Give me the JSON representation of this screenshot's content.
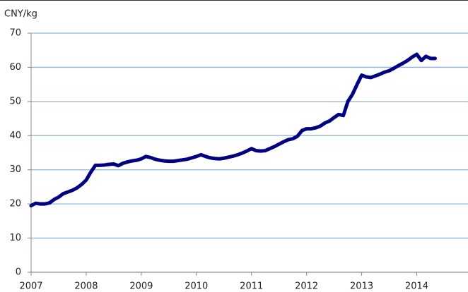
{
  "chart_data": {
    "type": "line",
    "y_label": "CNY/kg",
    "x": [
      2007,
      2007.083,
      2007.167,
      2007.25,
      2007.333,
      2007.417,
      2007.5,
      2007.583,
      2007.667,
      2007.75,
      2007.833,
      2007.917,
      2008,
      2008.083,
      2008.167,
      2008.25,
      2008.333,
      2008.417,
      2008.5,
      2008.583,
      2008.667,
      2008.75,
      2008.833,
      2008.917,
      2009,
      2009.083,
      2009.167,
      2009.25,
      2009.333,
      2009.417,
      2009.5,
      2009.583,
      2009.667,
      2009.75,
      2009.833,
      2009.917,
      2010,
      2010.083,
      2010.167,
      2010.25,
      2010.333,
      2010.417,
      2010.5,
      2010.583,
      2010.667,
      2010.75,
      2010.833,
      2010.917,
      2011,
      2011.083,
      2011.167,
      2011.25,
      2011.333,
      2011.417,
      2011.5,
      2011.583,
      2011.667,
      2011.75,
      2011.833,
      2011.917,
      2012,
      2012.083,
      2012.167,
      2012.25,
      2012.333,
      2012.417,
      2012.5,
      2012.583,
      2012.667,
      2012.75,
      2012.833,
      2012.917,
      2013,
      2013.083,
      2013.167,
      2013.25,
      2013.333,
      2013.417,
      2013.5,
      2013.583,
      2013.667,
      2013.75,
      2013.833,
      2013.917,
      2014,
      2014.083,
      2014.167,
      2014.25,
      2014.333
    ],
    "series": [
      {
        "color": "#000080",
        "values": [
          19.5,
          20.2,
          20.0,
          20.0,
          20.3,
          21.3,
          22.0,
          23.0,
          23.5,
          24.0,
          24.7,
          25.7,
          27.0,
          29.3,
          31.3,
          31.3,
          31.4,
          31.6,
          31.7,
          31.2,
          31.9,
          32.3,
          32.6,
          32.8,
          33.2,
          33.9,
          33.6,
          33.1,
          32.8,
          32.6,
          32.5,
          32.5,
          32.7,
          32.9,
          33.1,
          33.5,
          33.9,
          34.4,
          33.9,
          33.5,
          33.3,
          33.2,
          33.4,
          33.7,
          34.0,
          34.4,
          34.9,
          35.5,
          36.2,
          35.6,
          35.5,
          35.6,
          36.2,
          36.8,
          37.5,
          38.2,
          38.8,
          39.1,
          39.8,
          41.5,
          42.0,
          42.0,
          42.3,
          42.8,
          43.7,
          44.3,
          45.3,
          46.2,
          45.9,
          50.0,
          52.1,
          55.0,
          57.7,
          57.2,
          57.0,
          57.5,
          58.0,
          58.6,
          59.0,
          59.7,
          60.5,
          61.2,
          62.0,
          63.0,
          63.8,
          62.0,
          63.2,
          62.6,
          62.6
        ]
      }
    ],
    "xlim": [
      2007,
      2014.93
    ],
    "xticks": [
      2007,
      2008,
      2009,
      2010,
      2011,
      2012,
      2013,
      2014
    ],
    "ylim": [
      0,
      70
    ],
    "yticks": [
      0,
      10,
      20,
      30,
      40,
      50,
      60,
      70
    ],
    "grid": true,
    "grid_color": "#8db3e2"
  }
}
